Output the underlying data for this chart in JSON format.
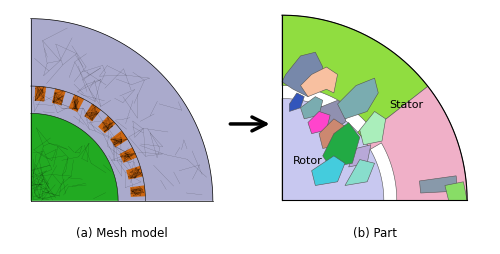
{
  "fig_width": 5.0,
  "fig_height": 2.55,
  "dpi": 100,
  "caption_a": "(a) Mesh model",
  "caption_b": "(b) Part",
  "label_stator": "Stator",
  "label_rotor": "Rotor",
  "bg_color": "#ffffff",
  "stator_mesh_color": "#aaaacc",
  "rotor_mesh_color": "#22aa22",
  "teeth_color": "#cc6611",
  "part_lime_green": "#90dd40",
  "part_pink": "#f0b0c8",
  "part_lavender": "#c8c8f0",
  "part_blue_gray1": "#7788aa",
  "part_blue_gray2": "#8899bb",
  "part_slate": "#9090b0",
  "part_teal_gray": "#7aacb0",
  "part_green_dark": "#22aa44",
  "part_magenta": "#ff44cc",
  "part_salmon": "#cc8870",
  "part_cyan": "#44ccdd",
  "part_light_green": "#aaeebb",
  "part_lavender2": "#b8a8d8",
  "part_steel_blue": "#4466cc",
  "part_peach": "#f8c0a0",
  "part_blue_dark": "#3355bb",
  "part_teal_light": "#88ddcc",
  "part_gray_blue": "#8899aa",
  "part_corner_green": "#88dd66"
}
